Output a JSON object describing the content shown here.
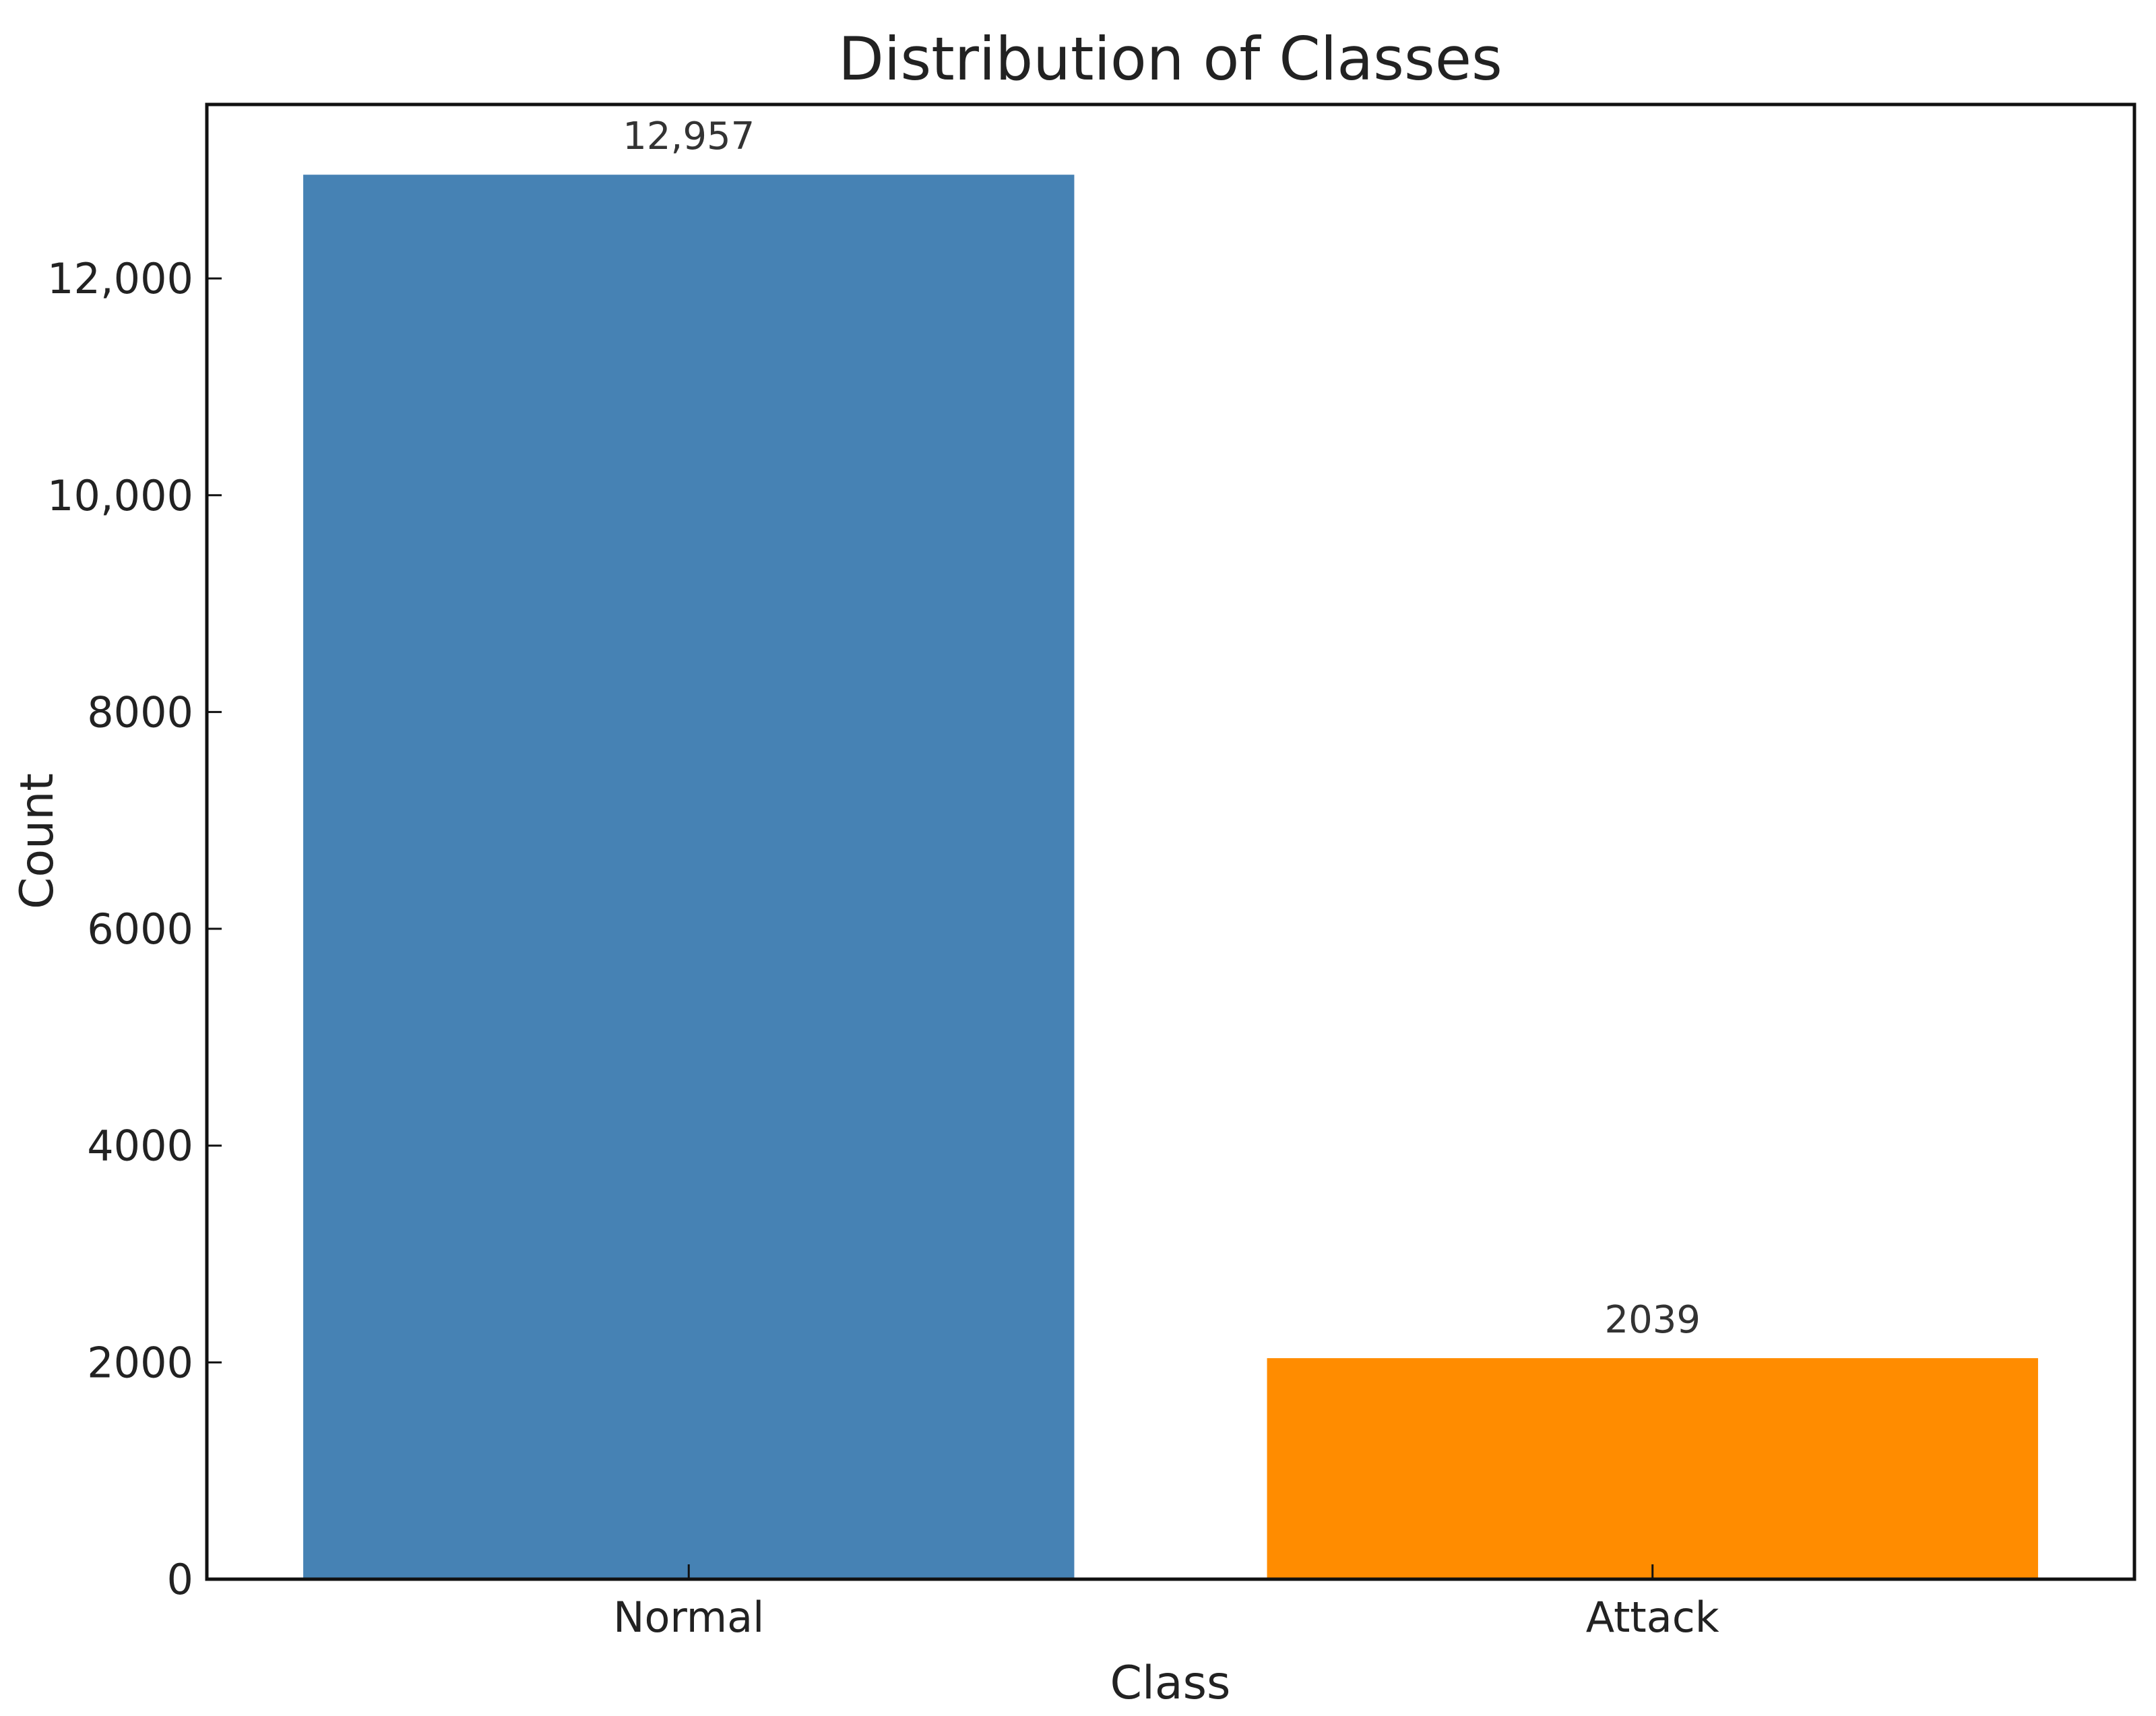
{
  "chart_data": {
    "type": "bar",
    "title": "Distribution of Classes",
    "xlabel": "Class",
    "ylabel": "Count",
    "categories": [
      "Normal",
      "Attack"
    ],
    "values": [
      12957,
      2039
    ],
    "data_labels": [
      "12,957",
      "2039"
    ],
    "colors": [
      "#4682B4",
      "#FF8C00"
    ],
    "yticks": [
      0,
      2000,
      4000,
      6000,
      8000,
      10000,
      12000
    ],
    "ytick_labels": [
      "0",
      "2000",
      "4000",
      "6000",
      "8000",
      "10,000",
      "12,000"
    ],
    "ylim": [
      0,
      13605
    ],
    "grid": false,
    "legend": "none"
  }
}
